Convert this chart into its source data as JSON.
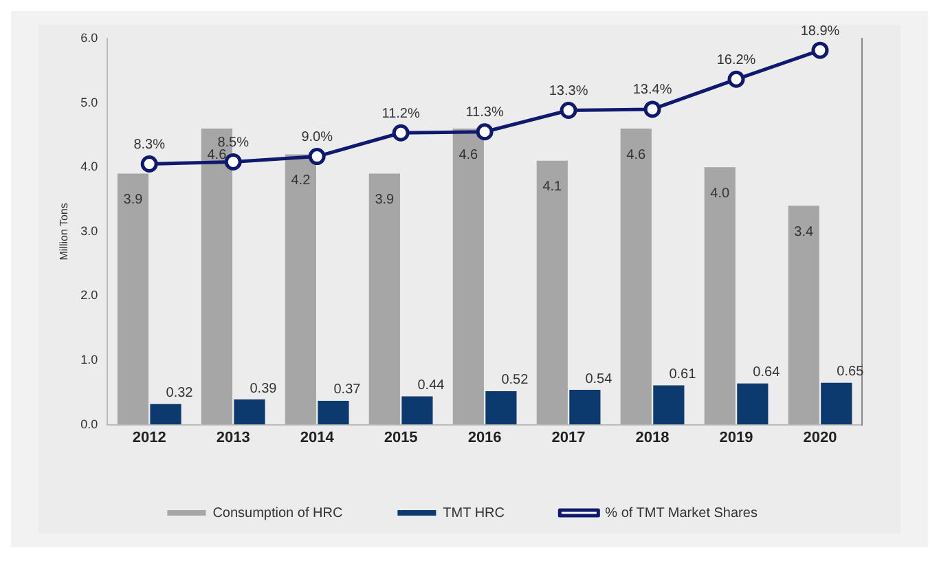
{
  "chart_data": {
    "type": "bar",
    "ylabel": "Million Tons",
    "categories": [
      "2012",
      "2013",
      "2014",
      "2015",
      "2016",
      "2017",
      "2018",
      "2019",
      "2020"
    ],
    "series": [
      {
        "name": "Consumption of HRC",
        "color": "#a6a6a6",
        "values": [
          3.9,
          4.6,
          4.2,
          3.9,
          4.6,
          4.1,
          4.6,
          4.0,
          3.4
        ],
        "value_labels": [
          "3.9",
          "4.6",
          "4.2",
          "3.9",
          "4.6",
          "4.1",
          "4.6",
          "4.0",
          "3.4"
        ]
      },
      {
        "name": "TMT HRC",
        "color": "#0d3a6e",
        "values": [
          0.32,
          0.39,
          0.37,
          0.44,
          0.52,
          0.54,
          0.61,
          0.64,
          0.65
        ],
        "value_labels": [
          "0.32",
          "0.39",
          "0.37",
          "0.44",
          "0.52",
          "0.54",
          "0.61",
          "0.64",
          "0.65"
        ]
      },
      {
        "name": "% of TMT Market Shares",
        "type": "line",
        "axis": "y2",
        "color": "#0f1a6e",
        "marker": "circle",
        "values": [
          8.3,
          8.5,
          9.0,
          11.2,
          11.3,
          13.3,
          13.4,
          16.2,
          18.9
        ],
        "value_labels": [
          "8.3%",
          "8.5%",
          "9.0%",
          "11.2%",
          "11.3%",
          "13.3%",
          "13.4%",
          "16.2%",
          "18.9%"
        ]
      }
    ],
    "ylim": [
      0,
      6
    ],
    "yticks": [
      {
        "value": 0,
        "label": "0.0"
      },
      {
        "value": 1,
        "label": "1.0"
      },
      {
        "value": 2,
        "label": "2.0"
      },
      {
        "value": 3,
        "label": "3.0"
      },
      {
        "value": 4,
        "label": "4.0"
      },
      {
        "value": 5,
        "label": "5.0"
      },
      {
        "value": 6,
        "label": "6.0"
      }
    ],
    "y2lim": [
      -16,
      20
    ],
    "tick_labels": "xy",
    "grid": false,
    "legend": "bottom"
  }
}
